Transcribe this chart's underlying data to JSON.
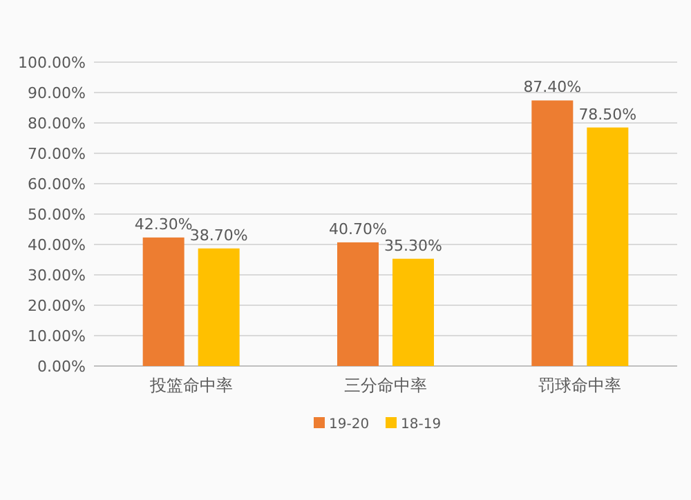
{
  "chart_data": {
    "type": "bar",
    "categories": [
      "投篮命中率",
      "三分命中率",
      "罚球命中率"
    ],
    "series": [
      {
        "name": "19-20",
        "color": "#ed7d31",
        "values": [
          42.3,
          40.7,
          87.4
        ],
        "value_labels": [
          "42.30%",
          "40.70%",
          "87.40%"
        ]
      },
      {
        "name": "18-19",
        "color": "#ffc000",
        "values": [
          38.7,
          35.3,
          78.5
        ],
        "value_labels": [
          "38.70%",
          "35.30%",
          "78.50%"
        ]
      }
    ],
    "ylim": [
      0,
      100
    ],
    "yticks": [
      {
        "value": 0,
        "label": "0.00%"
      },
      {
        "value": 10,
        "label": "10.00%"
      },
      {
        "value": 20,
        "label": "20.00%"
      },
      {
        "value": 30,
        "label": "30.00%"
      },
      {
        "value": 40,
        "label": "40.00%"
      },
      {
        "value": 50,
        "label": "50.00%"
      },
      {
        "value": 60,
        "label": "60.00%"
      },
      {
        "value": 70,
        "label": "70.00%"
      },
      {
        "value": 80,
        "label": "80.00%"
      },
      {
        "value": 90,
        "label": "90.00%"
      },
      {
        "value": 100,
        "label": "100.00%"
      }
    ],
    "grid": "y",
    "legend": "bottom"
  }
}
